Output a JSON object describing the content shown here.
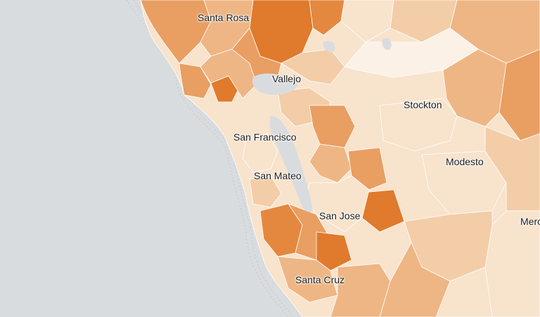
{
  "map": {
    "colors": {
      "water": "#d9dcdf",
      "scale": [
        "#fbf1e6",
        "#f8e3cc",
        "#f3cda7",
        "#eeb684",
        "#e99e62",
        "#e4883f",
        "#e07a2c"
      ]
    },
    "cities": [
      {
        "name": "Santa Rosa"
      },
      {
        "name": "Vallejo"
      },
      {
        "name": "Stockton"
      },
      {
        "name": "San Francisco"
      },
      {
        "name": "San Mateo"
      },
      {
        "name": "Modesto"
      },
      {
        "name": "San Jose"
      },
      {
        "name": "Merced"
      },
      {
        "name": "Santa Cruz"
      }
    ]
  }
}
